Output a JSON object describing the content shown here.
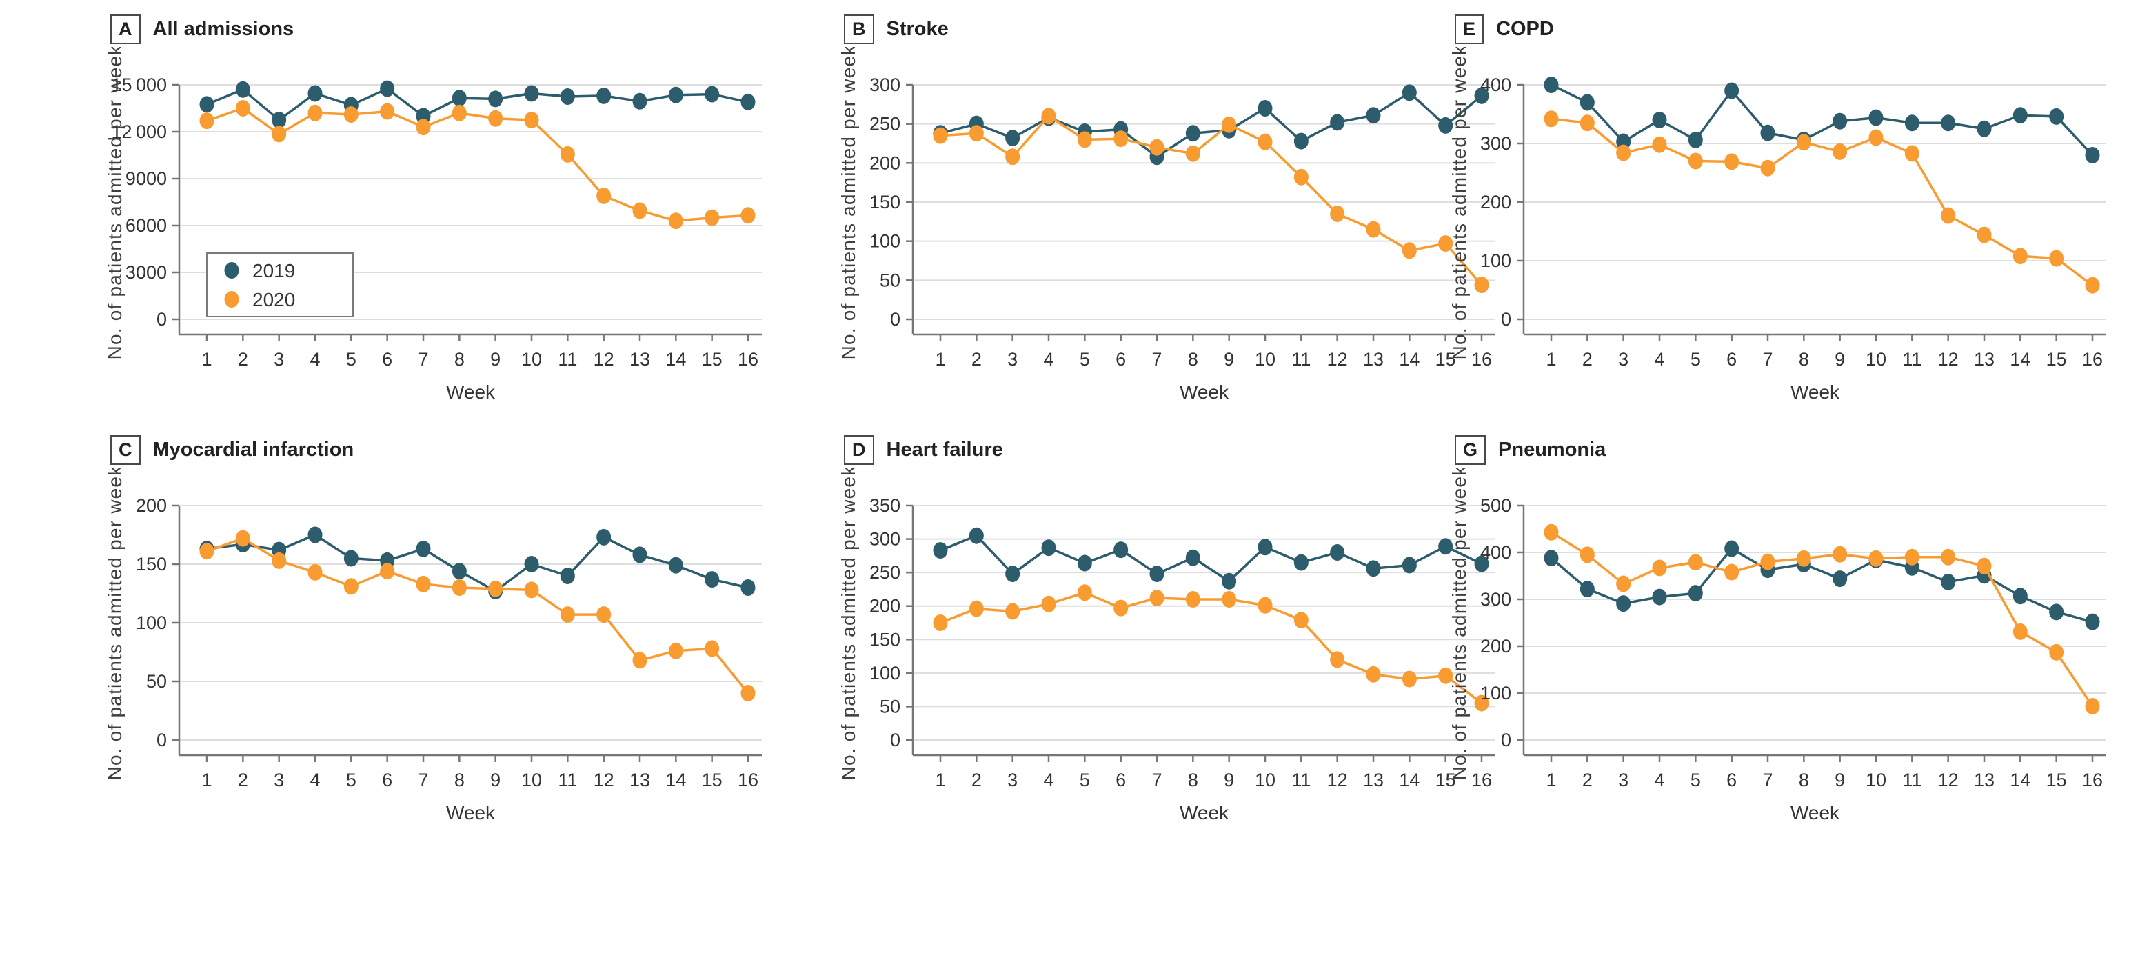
{
  "figure": {
    "x_axis_label": "Week",
    "y_axis_label": "No. of patients admitted per week",
    "weeks": [
      "1",
      "2",
      "3",
      "4",
      "5",
      "6",
      "7",
      "8",
      "9",
      "10",
      "11",
      "12",
      "13",
      "14",
      "15",
      "16"
    ],
    "legend": {
      "items": [
        {
          "label": "2019",
          "color": "#2d5d6d"
        },
        {
          "label": "2020",
          "color": "#f89c32"
        }
      ]
    },
    "colors": {
      "series_2019": "#2d5d6d",
      "series_2020": "#f89c32",
      "gridline": "#dedede",
      "axis": "#74767a",
      "tick_text": "#333333",
      "axis_title_text": "#3f3f3f",
      "legend_border": "#7a7a7a"
    }
  },
  "chart_data": [
    {
      "type": "line",
      "panel_letter": "A",
      "title": "All admissions",
      "xlabel": "Week",
      "ylabel": "No. of patients admitted per week",
      "ylim": [
        0,
        15000
      ],
      "yticks": [
        0,
        3000,
        6000,
        9000,
        12000,
        15000
      ],
      "ytick_labels": [
        "0",
        "3000",
        "6000",
        "9000",
        "12 000",
        "15 000"
      ],
      "grid": true,
      "legend_position": "lower-left",
      "show_legend": true,
      "categories": [
        "1",
        "2",
        "3",
        "4",
        "5",
        "6",
        "7",
        "8",
        "9",
        "10",
        "11",
        "12",
        "13",
        "14",
        "15",
        "16"
      ],
      "series": [
        {
          "name": "2019",
          "values": [
            13750,
            14700,
            12750,
            14450,
            13700,
            14750,
            13000,
            14150,
            14100,
            14450,
            14250,
            14300,
            13950,
            14350,
            14400,
            13900
          ]
        },
        {
          "name": "2020",
          "values": [
            12700,
            13500,
            11850,
            13200,
            13100,
            13300,
            12300,
            13200,
            12850,
            12750,
            10550,
            7900,
            6950,
            6300,
            6500,
            6650
          ]
        }
      ]
    },
    {
      "type": "line",
      "panel_letter": "B",
      "title": "Stroke",
      "xlabel": "Week",
      "ylabel": "No. of patients admitted per week",
      "ylim": [
        0,
        300
      ],
      "yticks": [
        0,
        50,
        100,
        150,
        200,
        250,
        300
      ],
      "ytick_labels": [
        "0",
        "50",
        "100",
        "150",
        "200",
        "250",
        "300"
      ],
      "grid": true,
      "show_legend": false,
      "categories": [
        "1",
        "2",
        "3",
        "4",
        "5",
        "6",
        "7",
        "8",
        "9",
        "10",
        "11",
        "12",
        "13",
        "14",
        "15",
        "16"
      ],
      "series": [
        {
          "name": "2019",
          "values": [
            238,
            250,
            232,
            258,
            240,
            243,
            208,
            238,
            242,
            270,
            228,
            252,
            261,
            290,
            248,
            286
          ]
        },
        {
          "name": "2020",
          "values": [
            235,
            238,
            208,
            260,
            230,
            231,
            220,
            212,
            249,
            227,
            182,
            135,
            115,
            88,
            97,
            44
          ]
        }
      ]
    },
    {
      "type": "line",
      "panel_letter": "E",
      "title": "COPD",
      "xlabel": "Week",
      "ylabel": "No. of patients admitted per week",
      "ylim": [
        0,
        400
      ],
      "yticks": [
        0,
        100,
        200,
        300,
        400
      ],
      "ytick_labels": [
        "0",
        "100",
        "200",
        "300",
        "400"
      ],
      "grid": true,
      "show_legend": false,
      "categories": [
        "1",
        "2",
        "3",
        "4",
        "5",
        "6",
        "7",
        "8",
        "9",
        "10",
        "11",
        "12",
        "13",
        "14",
        "15",
        "16"
      ],
      "series": [
        {
          "name": "2019",
          "values": [
            400,
            370,
            303,
            340,
            306,
            390,
            318,
            306,
            338,
            344,
            335,
            335,
            325,
            348,
            346,
            280
          ]
        },
        {
          "name": "2020",
          "values": [
            342,
            335,
            284,
            298,
            270,
            269,
            258,
            302,
            286,
            310,
            283,
            177,
            144,
            108,
            104,
            58
          ]
        }
      ]
    },
    {
      "type": "line",
      "panel_letter": "C",
      "title": "Myocardial infarction",
      "xlabel": "Week",
      "ylabel": "No. of patients admitted per week",
      "ylim": [
        0,
        200
      ],
      "yticks": [
        0,
        50,
        100,
        150,
        200
      ],
      "ytick_labels": [
        "0",
        "50",
        "100",
        "150",
        "200"
      ],
      "grid": true,
      "show_legend": false,
      "categories": [
        "1",
        "2",
        "3",
        "4",
        "5",
        "6",
        "7",
        "8",
        "9",
        "10",
        "11",
        "12",
        "13",
        "14",
        "15",
        "16"
      ],
      "series": [
        {
          "name": "2019",
          "values": [
            163,
            167,
            162,
            175,
            155,
            153,
            163,
            144,
            127,
            150,
            140,
            173,
            158,
            149,
            137,
            130
          ]
        },
        {
          "name": "2020",
          "values": [
            161,
            172,
            153,
            143,
            131,
            144,
            133,
            130,
            129,
            128,
            107,
            107,
            68,
            76,
            78,
            40
          ]
        }
      ]
    },
    {
      "type": "line",
      "panel_letter": "D",
      "title": "Heart failure",
      "xlabel": "Week",
      "ylabel": "No. of patients admitted per week",
      "ylim": [
        0,
        350
      ],
      "yticks": [
        0,
        50,
        100,
        150,
        200,
        250,
        300,
        350
      ],
      "ytick_labels": [
        "0",
        "50",
        "100",
        "150",
        "200",
        "250",
        "300",
        "350"
      ],
      "grid": true,
      "show_legend": false,
      "categories": [
        "1",
        "2",
        "3",
        "4",
        "5",
        "6",
        "7",
        "8",
        "9",
        "10",
        "11",
        "12",
        "13",
        "14",
        "15",
        "16"
      ],
      "series": [
        {
          "name": "2019",
          "values": [
            283,
            305,
            248,
            287,
            264,
            284,
            248,
            272,
            237,
            288,
            265,
            280,
            256,
            261,
            289,
            263
          ]
        },
        {
          "name": "2020",
          "values": [
            175,
            196,
            192,
            203,
            220,
            197,
            212,
            210,
            210,
            201,
            179,
            120,
            98,
            91,
            96,
            55
          ]
        }
      ]
    },
    {
      "type": "line",
      "panel_letter": "G",
      "title": "Pneumonia",
      "xlabel": "Week",
      "ylabel": "No. of patients admitted per week",
      "ylim": [
        0,
        500
      ],
      "yticks": [
        0,
        100,
        200,
        300,
        400,
        500
      ],
      "ytick_labels": [
        "0",
        "100",
        "200",
        "300",
        "400",
        "500"
      ],
      "grid": true,
      "show_legend": false,
      "categories": [
        "1",
        "2",
        "3",
        "4",
        "5",
        "6",
        "7",
        "8",
        "9",
        "10",
        "11",
        "12",
        "13",
        "14",
        "15",
        "16"
      ],
      "series": [
        {
          "name": "2019",
          "values": [
            388,
            322,
            291,
            305,
            313,
            408,
            363,
            375,
            344,
            384,
            368,
            337,
            351,
            307,
            273,
            252
          ]
        },
        {
          "name": "2020",
          "values": [
            443,
            395,
            333,
            367,
            379,
            358,
            380,
            387,
            396,
            387,
            390,
            390,
            371,
            231,
            187,
            72
          ]
        }
      ]
    }
  ]
}
